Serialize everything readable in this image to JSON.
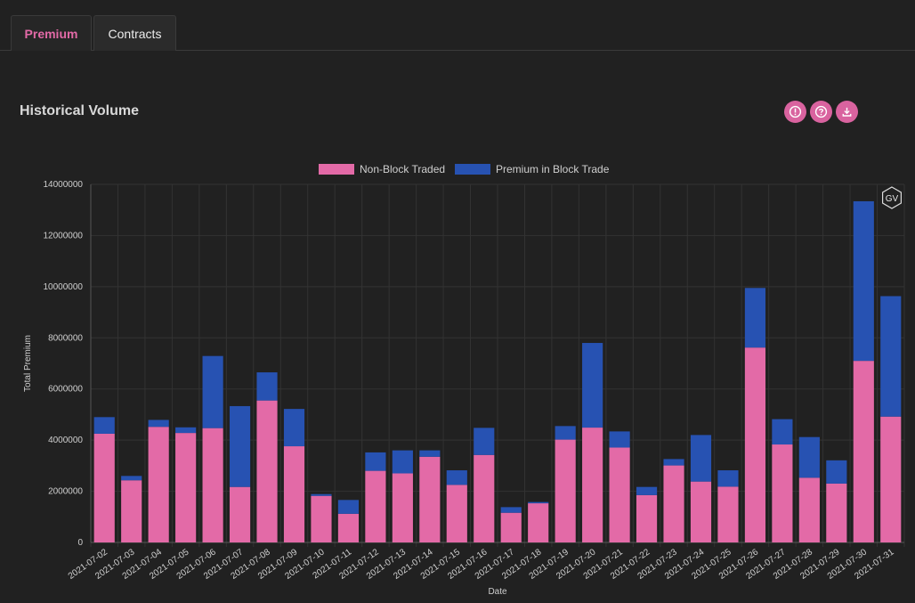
{
  "tabs": [
    {
      "label": "Premium",
      "active": true
    },
    {
      "label": "Contracts",
      "active": false
    }
  ],
  "panel": {
    "title": "Historical Volume",
    "icons": [
      "info-icon",
      "help-icon",
      "download-icon"
    ]
  },
  "colors": {
    "non_block": "#e36aa7",
    "block": "#2752b2",
    "accent": "#d9639f"
  },
  "watermark": "GV",
  "chart_data": {
    "type": "bar",
    "stacked": true,
    "xlabel": "Date",
    "ylabel": "Total Premium",
    "ylim": [
      0,
      14000000
    ],
    "yticks": [
      0,
      2000000,
      4000000,
      6000000,
      8000000,
      10000000,
      12000000,
      14000000
    ],
    "legend_position": "top-center",
    "grid": true,
    "categories": [
      "2021-07-02",
      "2021-07-03",
      "2021-07-04",
      "2021-07-05",
      "2021-07-06",
      "2021-07-07",
      "2021-07-08",
      "2021-07-09",
      "2021-07-10",
      "2021-07-11",
      "2021-07-12",
      "2021-07-13",
      "2021-07-14",
      "2021-07-15",
      "2021-07-16",
      "2021-07-17",
      "2021-07-18",
      "2021-07-19",
      "2021-07-20",
      "2021-07-21",
      "2021-07-22",
      "2021-07-23",
      "2021-07-24",
      "2021-07-25",
      "2021-07-26",
      "2021-07-27",
      "2021-07-28",
      "2021-07-29",
      "2021-07-30",
      "2021-07-31"
    ],
    "series": [
      {
        "name": "Non-Block Traded",
        "values": [
          4250000,
          2430000,
          4520000,
          4280000,
          4470000,
          2170000,
          5550000,
          3760000,
          1820000,
          1120000,
          2800000,
          2700000,
          3350000,
          2250000,
          3420000,
          1160000,
          1530000,
          4020000,
          4490000,
          3710000,
          1850000,
          3010000,
          2380000,
          2180000,
          7620000,
          3830000,
          2530000,
          2300000,
          7100000,
          4920000
        ]
      },
      {
        "name": "Premium in Block Trade",
        "values": [
          650000,
          170000,
          270000,
          220000,
          2820000,
          3160000,
          1100000,
          1460000,
          70000,
          540000,
          720000,
          900000,
          250000,
          570000,
          1060000,
          220000,
          50000,
          530000,
          3310000,
          630000,
          320000,
          250000,
          1820000,
          640000,
          2330000,
          990000,
          1590000,
          910000,
          6240000,
          4710000
        ]
      }
    ]
  }
}
